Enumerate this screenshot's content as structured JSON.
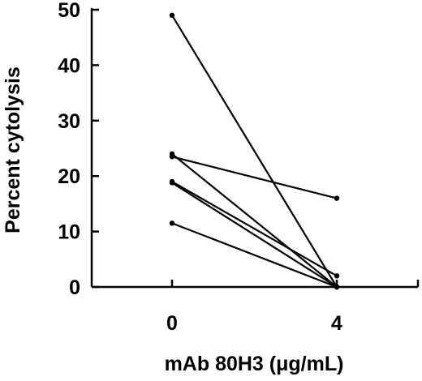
{
  "chart_data": {
    "type": "line",
    "title": "",
    "xlabel": "mAb 80H3 (μg/mL)",
    "ylabel": "Percent cytolysis",
    "x_categories": [
      "0",
      "4"
    ],
    "ylim": [
      0,
      50
    ],
    "yticks": [
      "0",
      "10",
      "20",
      "30",
      "40",
      "50"
    ],
    "grid": false,
    "legend": "none",
    "series": [
      {
        "values": [
          49,
          0
        ]
      },
      {
        "values": [
          24,
          0
        ]
      },
      {
        "values": [
          23.5,
          16
        ]
      },
      {
        "values": [
          19,
          2
        ]
      },
      {
        "values": [
          18.8,
          0
        ]
      },
      {
        "values": [
          11.5,
          0
        ]
      }
    ]
  }
}
